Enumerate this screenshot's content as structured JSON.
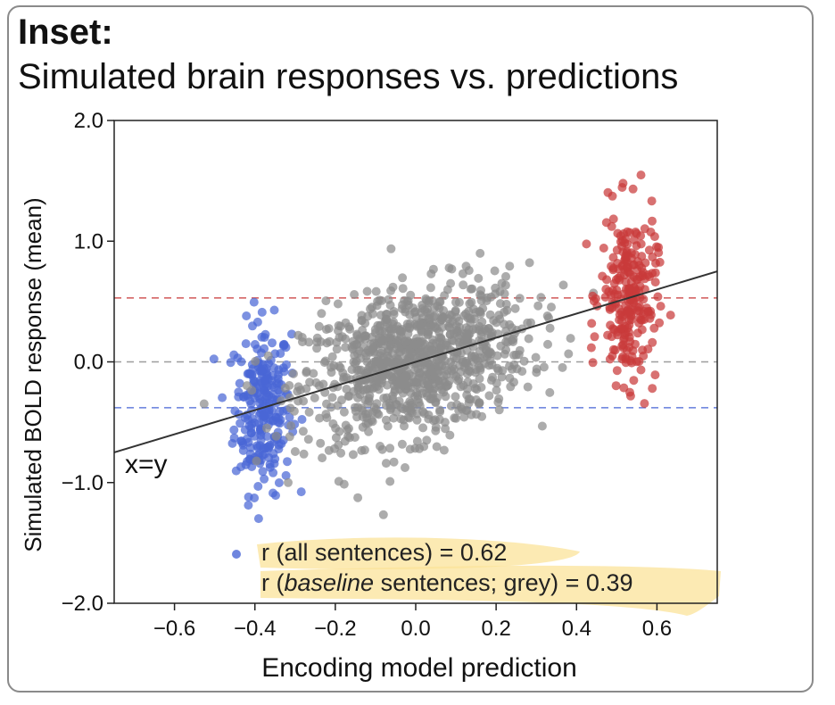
{
  "title": "Inset:",
  "subtitle": "Simulated brain responses vs. predictions",
  "colors": {
    "blue": "#4a67d6",
    "grey": "#8c8c8c",
    "red": "#c93a3a",
    "highlight": "#fbe39a"
  },
  "chart_data": {
    "type": "scatter",
    "xlabel": "Encoding model prediction",
    "ylabel": "Simulated BOLD response (mean)",
    "xlim": [
      -0.75,
      0.75
    ],
    "ylim": [
      -2.0,
      2.0
    ],
    "xticks": [
      -0.6,
      -0.4,
      -0.2,
      0.0,
      0.2,
      0.4,
      0.6
    ],
    "xtick_labels": [
      "−0.6",
      "−0.4",
      "−0.2",
      "0.0",
      "0.2",
      "0.4",
      "0.6"
    ],
    "yticks": [
      -2.0,
      -1.0,
      0.0,
      1.0,
      2.0
    ],
    "ytick_labels": [
      "−2.0",
      "−1.0",
      "0.0",
      "1.0",
      "2.0"
    ],
    "reference_line_label": "x=y",
    "hlines": [
      {
        "y": 0.53,
        "color": "red"
      },
      {
        "y": 0.0,
        "color": "grey"
      },
      {
        "y": -0.38,
        "color": "blue"
      }
    ],
    "series": [
      {
        "color": "blue",
        "x_center": -0.38,
        "x_spread": 0.035,
        "y_center": -0.38,
        "y_spread": 0.35,
        "n": 250
      },
      {
        "color": "grey",
        "x_center": 0.0,
        "x_spread": 0.14,
        "y_center": 0.0,
        "y_spread": 0.3,
        "slope": 0.75,
        "n": 1000
      },
      {
        "color": "red",
        "x_center": 0.53,
        "x_spread": 0.035,
        "y_center": 0.53,
        "y_spread": 0.35,
        "n": 250
      }
    ],
    "annotations": {
      "line1": "r (all sentences) = 0.62",
      "line2_prefix": "r (",
      "line2_italic": "baseline",
      "line2_suffix": " sentences; grey) = 0.39"
    }
  }
}
